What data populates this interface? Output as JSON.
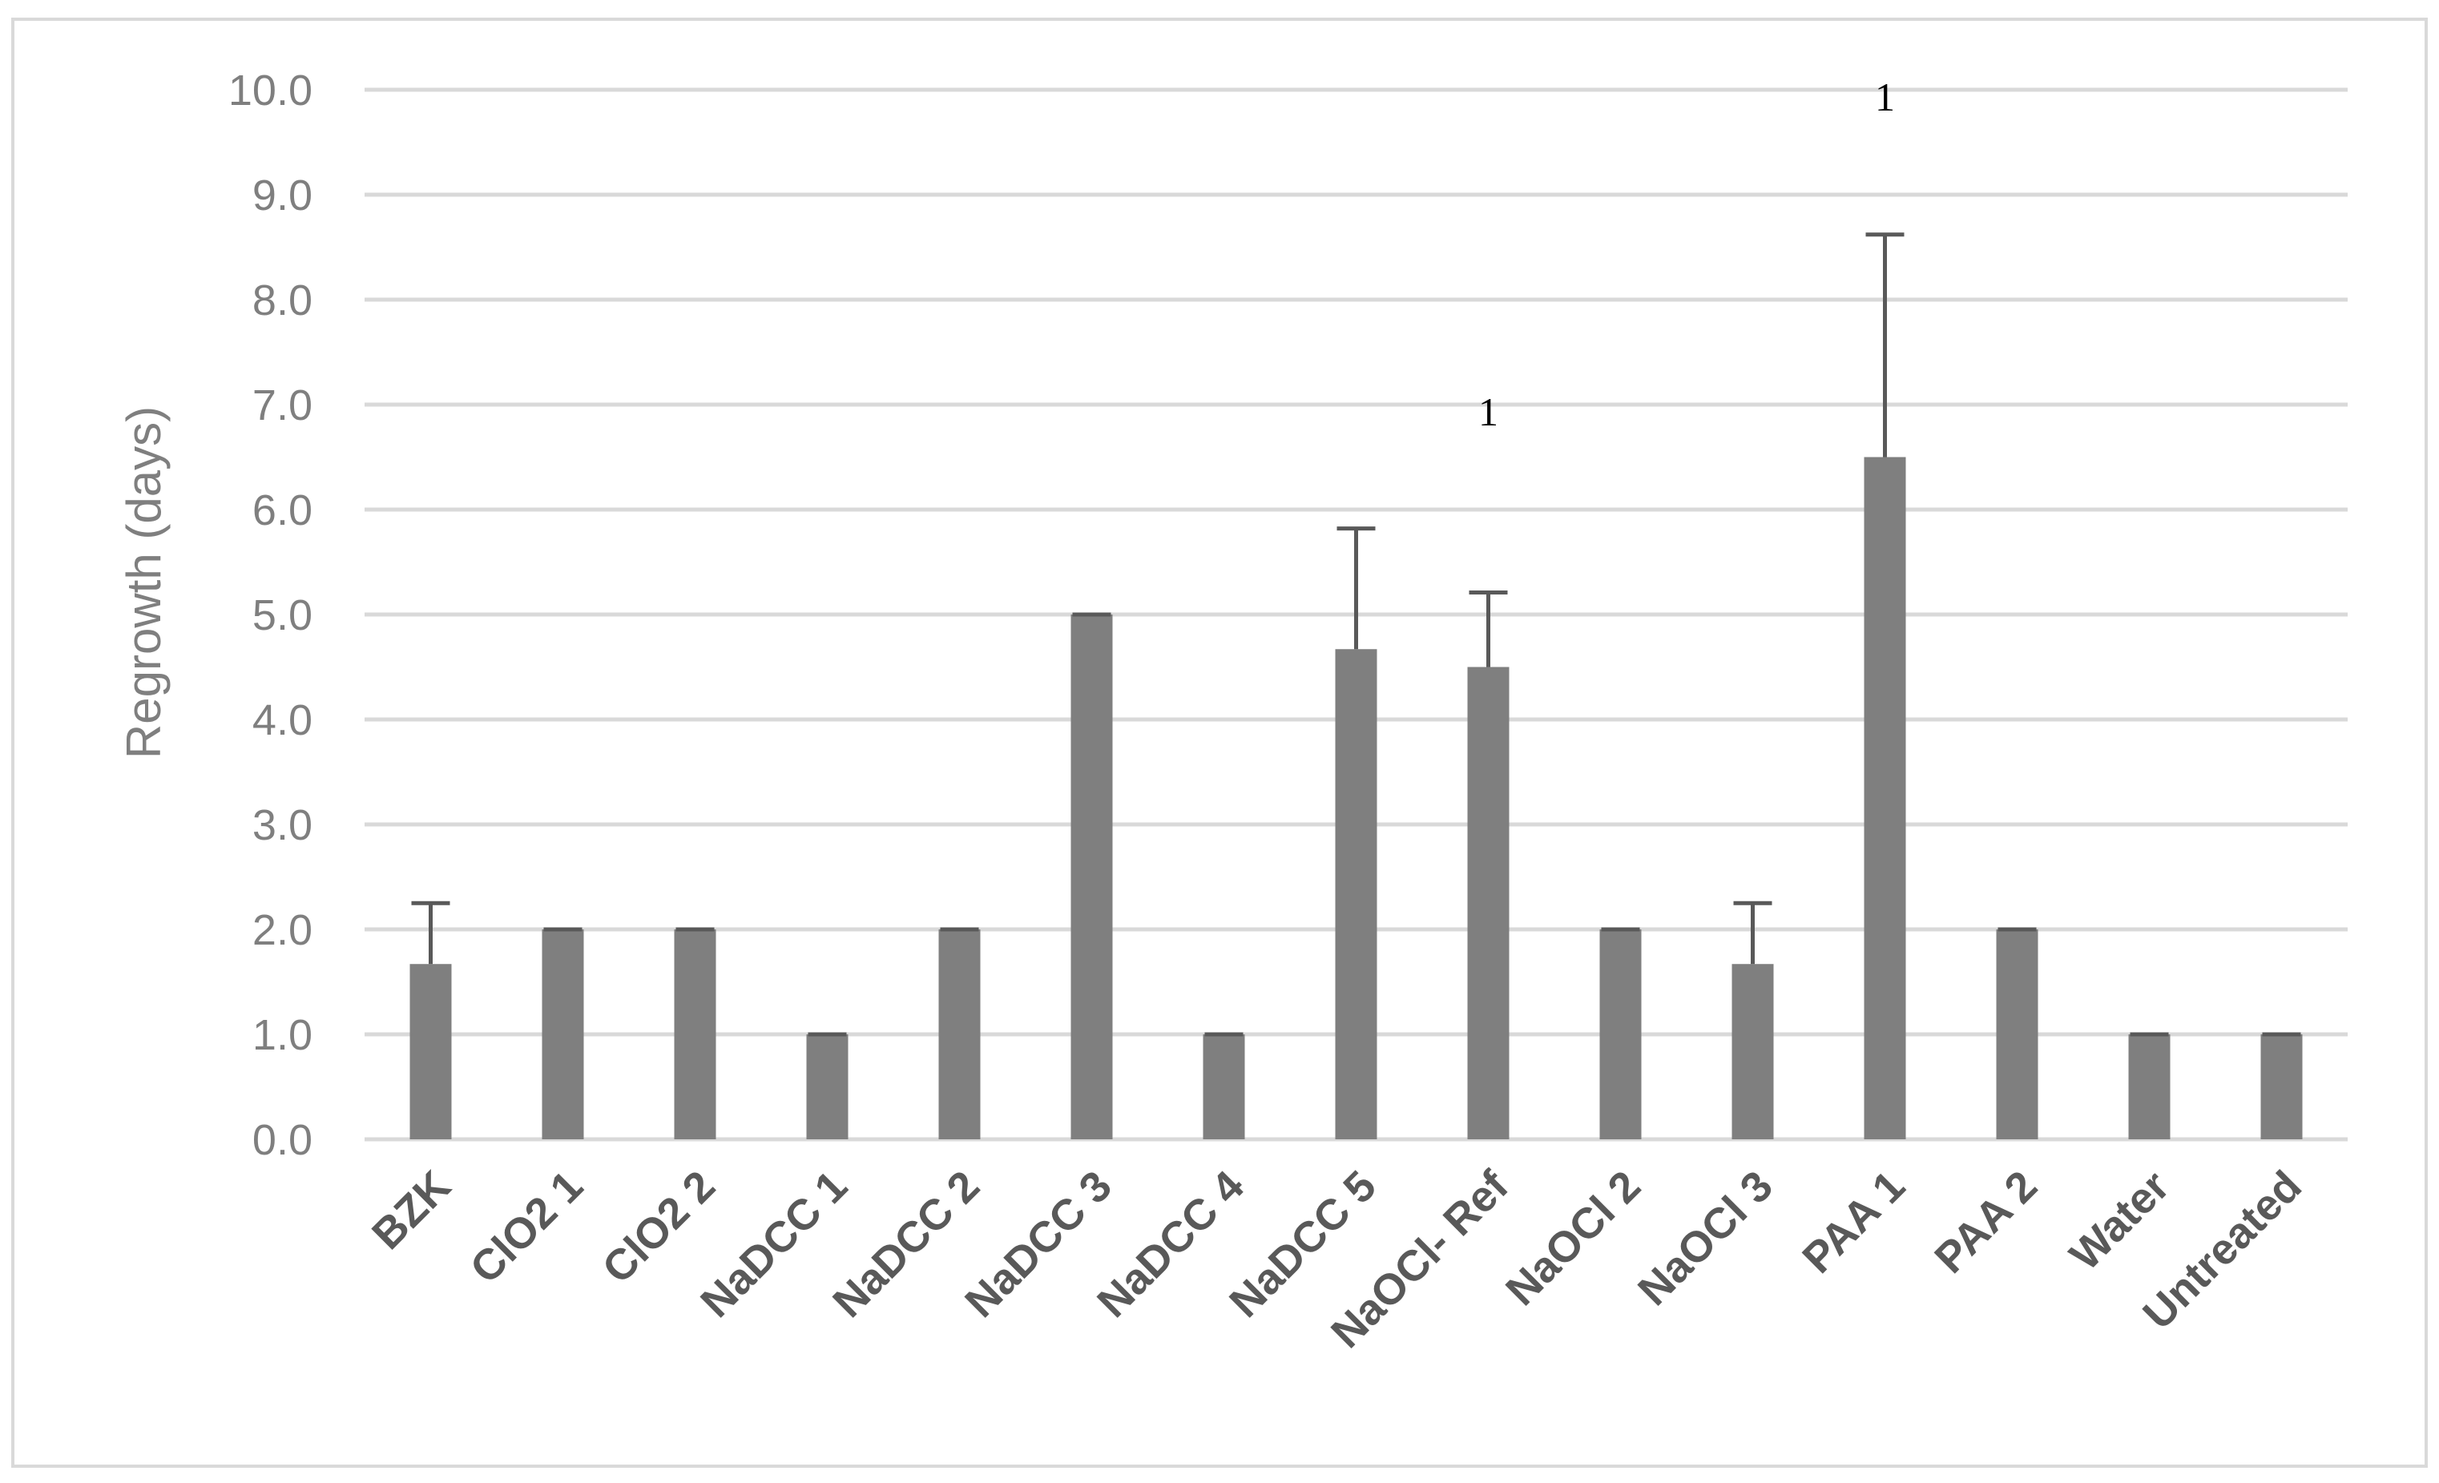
{
  "chart_data": {
    "type": "bar",
    "title": "",
    "xlabel": "",
    "ylabel": "Regrowth (days)",
    "ylim": [
      0,
      10
    ],
    "ytick_step": 1,
    "ytick_labels": [
      "0.0",
      "1.0",
      "2.0",
      "3.0",
      "4.0",
      "5.0",
      "6.0",
      "7.0",
      "8.0",
      "9.0",
      "10.0"
    ],
    "grid": true,
    "legend": "none",
    "categories": [
      "BZK",
      "ClO2 1",
      "ClO2 2",
      "NaDCC 1",
      "NaDCC 2",
      "NaDCC 3",
      "NaDCC 4",
      "NaDCC 5",
      "NaOCl- Ref",
      "NaOCl 2",
      "NaOCl 3",
      "PAA 1",
      "PAA 2",
      "Water",
      "Untreated"
    ],
    "values": [
      1.67,
      2.0,
      2.0,
      1.0,
      2.0,
      5.0,
      1.0,
      4.67,
      4.5,
      2.0,
      1.67,
      6.5,
      2.0,
      1.0,
      1.0
    ],
    "error_upper": [
      0.58,
      0,
      0,
      0,
      0,
      0,
      0,
      1.15,
      0.71,
      0,
      0.58,
      2.12,
      0,
      0,
      0
    ],
    "annotations": [
      {
        "category": "NaOCl- Ref",
        "text": "1",
        "y": 6.8
      },
      {
        "category": "PAA 1",
        "text": "1",
        "y": 9.8
      }
    ],
    "colors": {
      "bar": "#7f7f7f",
      "error_bar": "#595959",
      "grid": "#d9d9d9",
      "axis_text": "#7f7f7f",
      "category_text": "#595959",
      "frame": "#d9d9d9"
    }
  }
}
